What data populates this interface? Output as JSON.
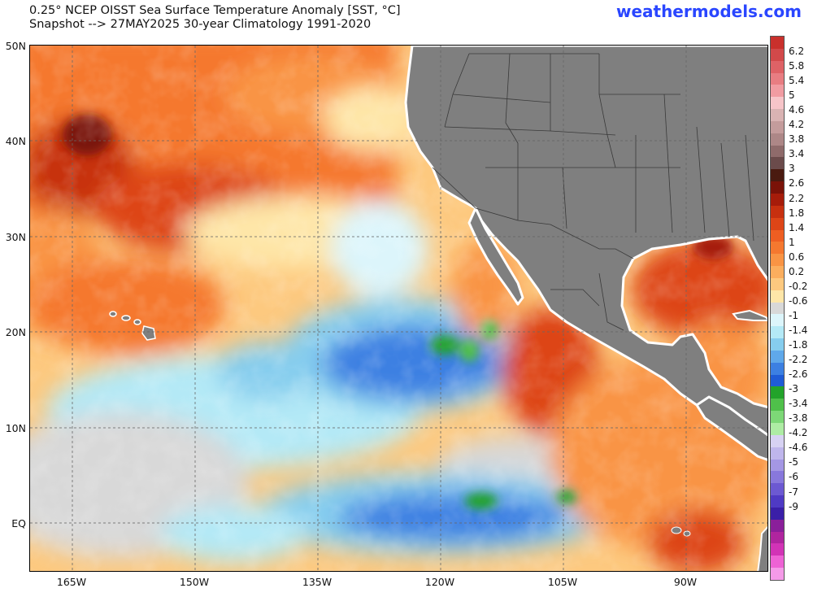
{
  "header": {
    "title_line1": "0.25° NCEP OISST Sea Surface Temperature Anomaly [SST, °C]",
    "title_line2": "Snapshot --> 27MAY2025   30-year Climatology 1991-2020",
    "brand": "weathermodels.com"
  },
  "map": {
    "lat_labels": [
      "50N",
      "40N",
      "30N",
      "20N",
      "10N",
      "EQ"
    ],
    "lon_labels": [
      "165W",
      "150W",
      "135W",
      "120W",
      "105W",
      "90W"
    ],
    "land_color": "#7f7f7f",
    "border_color": "#3a3a3a"
  },
  "colorbar": {
    "labels": [
      "6.2",
      "5.8",
      "5.4",
      "5",
      "4.6",
      "4.2",
      "3.8",
      "3.4",
      "3",
      "2.6",
      "2.2",
      "1.8",
      "1.4",
      "1",
      "0.6",
      "0.2",
      "-0.2",
      "-0.6",
      "-1",
      "-1.4",
      "-1.8",
      "-2.2",
      "-2.6",
      "-3",
      "-3.4",
      "-3.8",
      "-4.2",
      "-4.6",
      "-5",
      "-6",
      "-7",
      "-9"
    ],
    "colors": [
      "#c9302c",
      "#d2494a",
      "#de6266",
      "#e87d82",
      "#f19ca2",
      "#f7c5c9",
      "#d9b3b3",
      "#c49c9c",
      "#ad8787",
      "#8f6b6b",
      "#6b4b4b",
      "#4a1a10",
      "#7a1208",
      "#a61c0a",
      "#c7300f",
      "#dd4517",
      "#ee5e22",
      "#f5782f",
      "#f99444",
      "#fbae5e",
      "#fdc97f",
      "#fee6a8",
      "#d8d8d8",
      "#dcf5fb",
      "#b4e9f6",
      "#86cdee",
      "#5fa8ea",
      "#3c80e2",
      "#1f5cd6",
      "#22a32a",
      "#4fc04a",
      "#7dd877",
      "#aeeca4",
      "#d7d2f3",
      "#bfb6ec",
      "#a497e4",
      "#8878dc",
      "#6c59d2",
      "#4f3ac4",
      "#3a1fa8",
      "#8a1f9a",
      "#b0259f",
      "#d233b6",
      "#ee62d5",
      "#f59ae8"
    ]
  }
}
